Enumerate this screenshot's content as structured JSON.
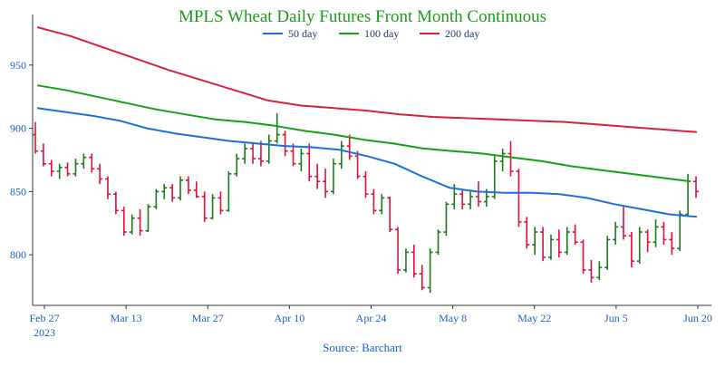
{
  "colors": {
    "title": "#1a9c1a",
    "axis_text": "#1f5fbf",
    "axis_line": "#333333",
    "up_bar": "#1a7a1a",
    "down_bar": "#dd1133",
    "ma50": "#1a6fdb",
    "ma100": "#15a015",
    "ma200": "#d8203c"
  },
  "chart_data": {
    "type": "ohlc",
    "title": "MPLS Wheat Daily Futures Front Month Continuous",
    "source": "Source: Barchart",
    "x_ticks": [
      "Feb 27",
      "Mar 13",
      "Mar 27",
      "Apr 10",
      "Apr 24",
      "May 8",
      "May 22",
      "Jun 5",
      "Jun 20"
    ],
    "x_tick_year": "2023",
    "y_ticks": [
      800,
      850,
      900,
      950
    ],
    "ylim": [
      760,
      990
    ],
    "legend": [
      {
        "name": "50 day",
        "color": "ma50"
      },
      {
        "name": "100 day",
        "color": "ma100"
      },
      {
        "name": "200 day",
        "color": "ma200"
      }
    ],
    "ohlc": [
      [
        895,
        905,
        880,
        882
      ],
      [
        882,
        888,
        870,
        872
      ],
      [
        872,
        875,
        862,
        866
      ],
      [
        866,
        872,
        860,
        869
      ],
      [
        869,
        873,
        862,
        864
      ],
      [
        864,
        876,
        862,
        872
      ],
      [
        872,
        880,
        868,
        877
      ],
      [
        877,
        880,
        865,
        868
      ],
      [
        868,
        872,
        856,
        860
      ],
      [
        860,
        862,
        844,
        848
      ],
      [
        848,
        850,
        832,
        835
      ],
      [
        835,
        838,
        815,
        818
      ],
      [
        818,
        832,
        816,
        829
      ],
      [
        829,
        836,
        815,
        819
      ],
      [
        819,
        840,
        818,
        838
      ],
      [
        838,
        852,
        836,
        850
      ],
      [
        850,
        856,
        844,
        853
      ],
      [
        853,
        856,
        842,
        845
      ],
      [
        845,
        862,
        843,
        859
      ],
      [
        859,
        862,
        848,
        851
      ],
      [
        851,
        858,
        845,
        846
      ],
      [
        846,
        850,
        826,
        829
      ],
      [
        829,
        848,
        828,
        845
      ],
      [
        845,
        850,
        832,
        835
      ],
      [
        835,
        866,
        834,
        864
      ],
      [
        864,
        880,
        862,
        876
      ],
      [
        876,
        888,
        872,
        884
      ],
      [
        884,
        888,
        872,
        876
      ],
      [
        876,
        890,
        870,
        874
      ],
      [
        874,
        895,
        872,
        890
      ],
      [
        890,
        912,
        888,
        895
      ],
      [
        895,
        898,
        878,
        882
      ],
      [
        882,
        888,
        870,
        872
      ],
      [
        872,
        884,
        866,
        880
      ],
      [
        880,
        888,
        858,
        862
      ],
      [
        862,
        872,
        852,
        858
      ],
      [
        858,
        868,
        845,
        850
      ],
      [
        850,
        876,
        848,
        872
      ],
      [
        872,
        890,
        868,
        886
      ],
      [
        886,
        895,
        875,
        878
      ],
      [
        878,
        882,
        860,
        862
      ],
      [
        862,
        866,
        845,
        848
      ],
      [
        848,
        852,
        832,
        835
      ],
      [
        835,
        848,
        832,
        845
      ],
      [
        845,
        846,
        818,
        820
      ],
      [
        820,
        822,
        785,
        788
      ],
      [
        788,
        805,
        786,
        802
      ],
      [
        802,
        808,
        782,
        785
      ],
      [
        785,
        792,
        772,
        774
      ],
      [
        774,
        805,
        770,
        802
      ],
      [
        802,
        820,
        800,
        818
      ],
      [
        818,
        842,
        815,
        840
      ],
      [
        840,
        856,
        836,
        848
      ],
      [
        848,
        852,
        836,
        840
      ],
      [
        840,
        850,
        836,
        846
      ],
      [
        846,
        858,
        838,
        842
      ],
      [
        842,
        852,
        838,
        846
      ],
      [
        846,
        878,
        844,
        874
      ],
      [
        874,
        884,
        866,
        880
      ],
      [
        880,
        890,
        862,
        866
      ],
      [
        866,
        868,
        822,
        826
      ],
      [
        826,
        830,
        805,
        808
      ],
      [
        808,
        822,
        800,
        818
      ],
      [
        818,
        822,
        795,
        798
      ],
      [
        798,
        816,
        796,
        812
      ],
      [
        812,
        820,
        798,
        802
      ],
      [
        802,
        822,
        800,
        818
      ],
      [
        818,
        824,
        808,
        810
      ],
      [
        810,
        812,
        785,
        788
      ],
      [
        788,
        796,
        778,
        782
      ],
      [
        782,
        795,
        780,
        790
      ],
      [
        790,
        815,
        788,
        812
      ],
      [
        812,
        826,
        808,
        822
      ],
      [
        822,
        838,
        812,
        815
      ],
      [
        815,
        818,
        790,
        795
      ],
      [
        795,
        822,
        793,
        818
      ],
      [
        818,
        820,
        802,
        810
      ],
      [
        810,
        828,
        806,
        822
      ],
      [
        822,
        826,
        808,
        812
      ],
      [
        812,
        818,
        800,
        805
      ],
      [
        805,
        835,
        803,
        832
      ],
      [
        832,
        864,
        830,
        858
      ],
      [
        858,
        862,
        845,
        850
      ]
    ],
    "ma50": [
      916,
      913,
      910,
      906,
      900,
      896,
      893,
      890,
      888,
      886,
      885,
      883,
      878,
      872,
      862,
      853,
      850,
      849,
      849,
      848,
      845,
      840,
      836,
      832,
      830
    ],
    "ma100": [
      934,
      930,
      925,
      920,
      915,
      911,
      907,
      905,
      902,
      898,
      895,
      891,
      888,
      884,
      882,
      880,
      877,
      874,
      870,
      867,
      864,
      861,
      858
    ],
    "ma200": [
      980,
      973,
      964,
      955,
      946,
      938,
      930,
      922,
      918,
      916,
      914,
      911,
      909,
      908,
      907,
      906,
      905,
      903,
      901,
      899,
      897
    ]
  }
}
